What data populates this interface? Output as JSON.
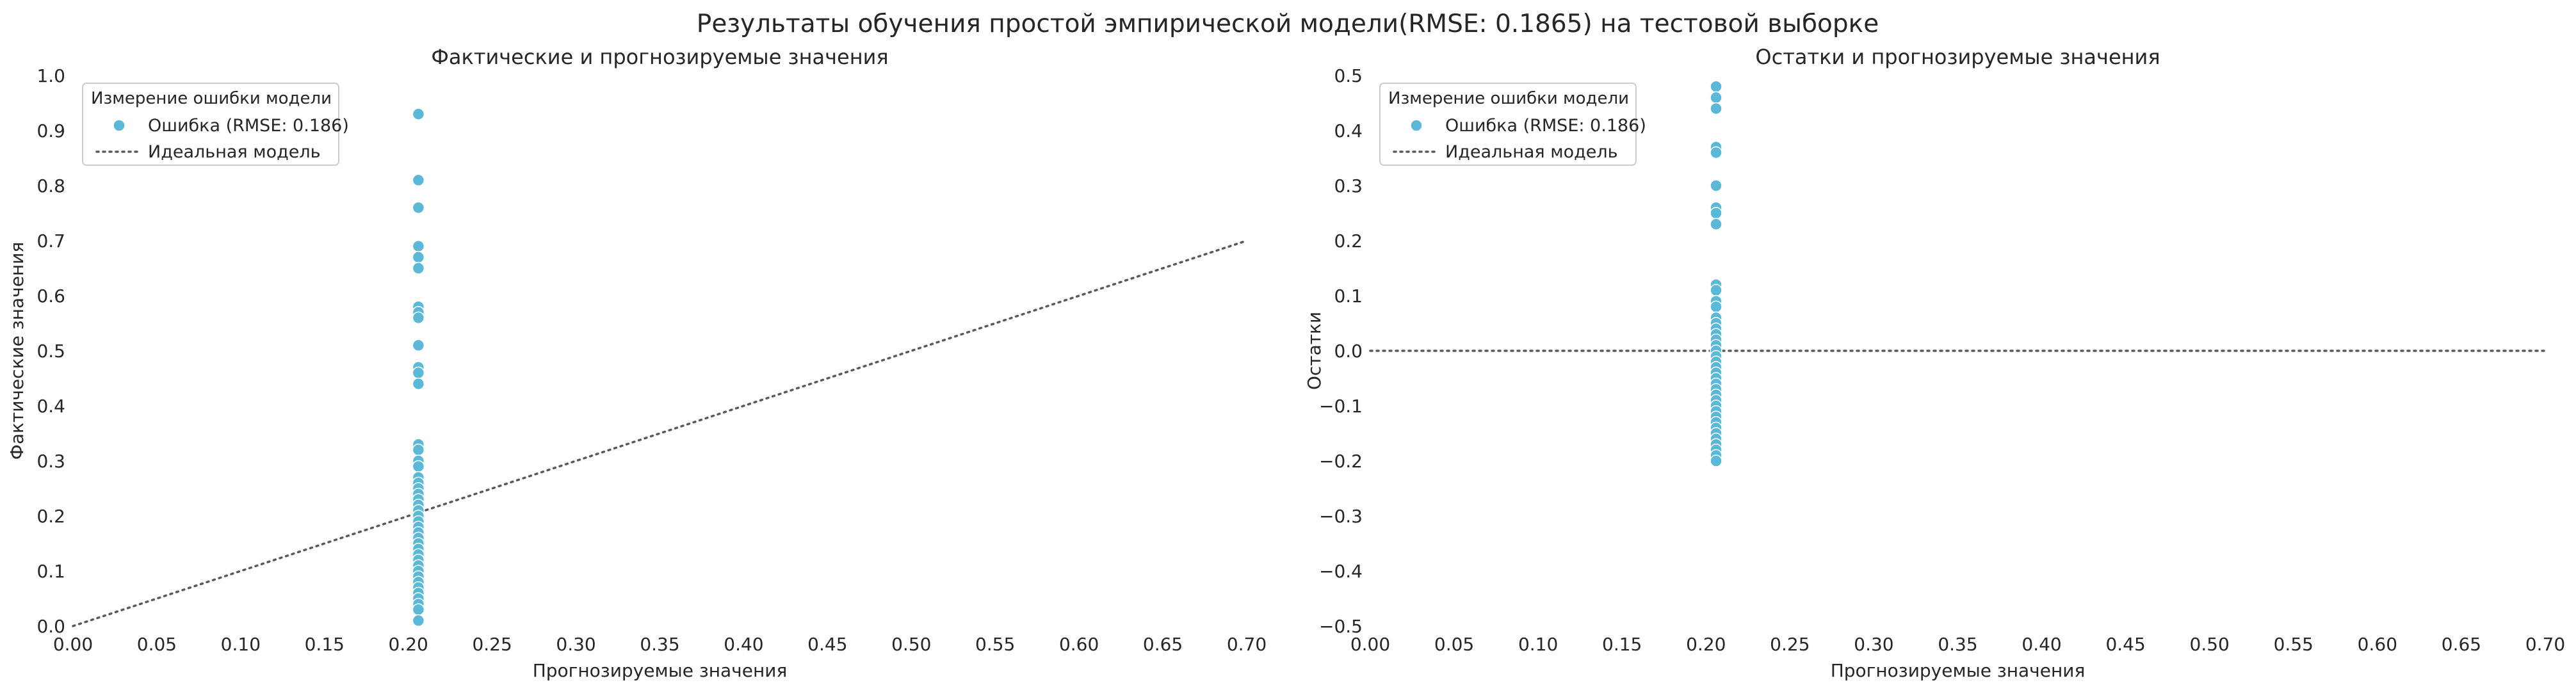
{
  "suptitle": "Результаты обучения простой эмпирической модели(RMSE: 0.1865) на тестовой выборке",
  "colors": {
    "points": "#5bb8d6",
    "ideal_line": "#5a5a5a",
    "legend_border": "#cccccc",
    "text": "#262626"
  },
  "chart_data": [
    {
      "type": "scatter",
      "title": "Фактические и прогнозируемые значения",
      "xlabel": "Прогнозируемые значения",
      "ylabel": "Фактические значения",
      "xlim": [
        0,
        0.7
      ],
      "ylim": [
        0,
        1.0
      ],
      "xticks": [
        "0.00",
        "0.05",
        "0.10",
        "0.15",
        "0.20",
        "0.25",
        "0.30",
        "0.35",
        "0.40",
        "0.45",
        "0.50",
        "0.55",
        "0.60",
        "0.65",
        "0.70"
      ],
      "yticks": [
        "0.0",
        "0.1",
        "0.2",
        "0.3",
        "0.4",
        "0.5",
        "0.6",
        "0.7",
        "0.8",
        "0.9",
        "1.0"
      ],
      "grid": false,
      "legend_placement": "upper-left",
      "legend": {
        "title": "Измерение ошибки модели",
        "points_label": "Ошибка (RMSE: 0.186)",
        "line_label": "Идеальная модель"
      },
      "series": [
        {
          "name": "Ошибка (RMSE: 0.186)",
          "kind": "points",
          "x": 0.206,
          "y": [
            0.93,
            0.81,
            0.76,
            0.69,
            0.67,
            0.65,
            0.58,
            0.57,
            0.56,
            0.51,
            0.47,
            0.46,
            0.44,
            0.33,
            0.32,
            0.3,
            0.29,
            0.27,
            0.26,
            0.25,
            0.24,
            0.23,
            0.22,
            0.21,
            0.2,
            0.19,
            0.18,
            0.17,
            0.16,
            0.15,
            0.14,
            0.13,
            0.12,
            0.11,
            0.1,
            0.09,
            0.08,
            0.07,
            0.06,
            0.05,
            0.04,
            0.03,
            0.01
          ]
        },
        {
          "name": "Идеальная модель",
          "kind": "line",
          "x": [
            0,
            0.7
          ],
          "y": [
            0,
            0.7
          ]
        }
      ]
    },
    {
      "type": "scatter",
      "title": "Остатки и прогнозируемые значения",
      "xlabel": "Прогнозируемые значения",
      "ylabel": "Остатки",
      "xlim": [
        0,
        0.7
      ],
      "ylim": [
        -0.5,
        0.5
      ],
      "xticks": [
        "0.00",
        "0.05",
        "0.10",
        "0.15",
        "0.20",
        "0.25",
        "0.30",
        "0.35",
        "0.40",
        "0.45",
        "0.50",
        "0.55",
        "0.60",
        "0.65",
        "0.70"
      ],
      "yticks": [
        "−0.5",
        "−0.4",
        "−0.3",
        "−0.2",
        "−0.1",
        "0.0",
        "0.1",
        "0.2",
        "0.3",
        "0.4",
        "0.5"
      ],
      "grid": false,
      "legend_placement": "upper-left",
      "legend": {
        "title": "Измерение ошибки модели",
        "points_label": "Ошибка (RMSE: 0.186)",
        "line_label": "Идеальная модель"
      },
      "series": [
        {
          "name": "Ошибка (RMSE: 0.186)",
          "kind": "points",
          "x": 0.206,
          "y": [
            0.48,
            0.46,
            0.44,
            0.37,
            0.36,
            0.3,
            0.26,
            0.25,
            0.23,
            0.12,
            0.11,
            0.09,
            0.08,
            0.06,
            0.05,
            0.04,
            0.03,
            0.02,
            0.01,
            0.0,
            -0.01,
            -0.02,
            -0.03,
            -0.04,
            -0.05,
            -0.06,
            -0.07,
            -0.08,
            -0.09,
            -0.1,
            -0.11,
            -0.12,
            -0.13,
            -0.14,
            -0.15,
            -0.16,
            -0.17,
            -0.18,
            -0.19,
            -0.2
          ]
        },
        {
          "name": "Идеальная модель",
          "kind": "line",
          "x": [
            0,
            0.7
          ],
          "y": [
            0,
            0
          ]
        }
      ]
    }
  ]
}
